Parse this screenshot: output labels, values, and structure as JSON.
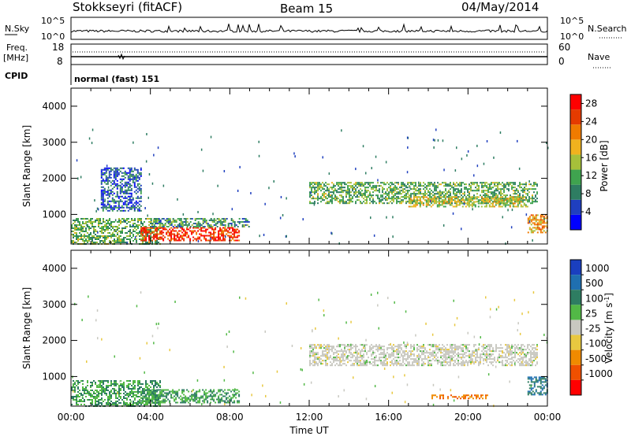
{
  "header": {
    "station": "Stokkseyri (fitACF)",
    "beam": "Beam 15",
    "date": "04/May/2014"
  },
  "top_panels": {
    "nsky_label": "N.Sky",
    "nsky_ticks": [
      "10^5",
      "10^0"
    ],
    "nsearch_label": "N.Search",
    "nsearch_ticks": [
      "10^5",
      "10^0"
    ],
    "freq_label": "Freq.",
    "freq_unit": "[MHz]",
    "freq_ticks": [
      "18",
      "8"
    ],
    "nave_label": "Nave",
    "nave_ticks": [
      "60",
      "0"
    ],
    "cpid_label": "CPID",
    "cpid_value": "normal (fast) 151"
  },
  "colors": {
    "power_scale": [
      "#0000ff",
      "#1f3fbf",
      "#2e7d62",
      "#3fa34f",
      "#a6c03a",
      "#f0b21e",
      "#f07b00",
      "#e53b00",
      "#ff0000"
    ],
    "velocity_scale": [
      "#1a3fbf",
      "#1f6fb0",
      "#2e7d62",
      "#52b846",
      "#c8c8c0",
      "#e8c840",
      "#f08a00",
      "#f05000",
      "#ff0000"
    ]
  },
  "chart_data": [
    {
      "type": "heatmap",
      "title": "Power",
      "xlabel": "",
      "ylabel": "Slant Range [km]",
      "xlim": [
        "00:00",
        "24:00"
      ],
      "ylim": [
        180,
        4500
      ],
      "y_ticks": [
        "1000",
        "2000",
        "3000",
        "4000"
      ],
      "colorbar_label": "Power [dB]",
      "colorbar_ticks": [
        "4",
        "8",
        "12",
        "16",
        "20",
        "24",
        "28"
      ],
      "colorbar_range": [
        0,
        30
      ],
      "regions": [
        {
          "t0": 0.0,
          "t1": 4.5,
          "r0": 200,
          "r1": 900,
          "value": 12
        },
        {
          "t0": 1.5,
          "t1": 3.5,
          "r0": 1100,
          "r1": 2300,
          "value": 6
        },
        {
          "t0": 3.5,
          "t1": 8.5,
          "r0": 300,
          "r1": 650,
          "value": 26
        },
        {
          "t0": 4.0,
          "t1": 9.0,
          "r0": 650,
          "r1": 900,
          "value": 10
        },
        {
          "t0": 12.0,
          "t1": 23.5,
          "r0": 1300,
          "r1": 1900,
          "value": 12
        },
        {
          "t0": 17.0,
          "t1": 23.0,
          "r0": 1200,
          "r1": 1500,
          "value": 16
        },
        {
          "t0": 23.0,
          "t1": 24.0,
          "r0": 500,
          "r1": 1000,
          "value": 20
        }
      ]
    },
    {
      "type": "heatmap",
      "title": "Velocity",
      "xlabel": "Time UT",
      "ylabel": "Slant Range [km]",
      "xlim": [
        "00:00",
        "24:00"
      ],
      "ylim": [
        180,
        4500
      ],
      "x_ticks": [
        "00:00",
        "04:00",
        "08:00",
        "12:00",
        "16:00",
        "20:00",
        "00:00"
      ],
      "y_ticks": [
        "1000",
        "2000",
        "3000",
        "4000"
      ],
      "colorbar_label": "Velocity [m s^-1]",
      "colorbar_ticks": [
        "1000",
        "500",
        "100",
        "25",
        "-25",
        "-100",
        "-500",
        "-1000"
      ],
      "regions": [
        {
          "t0": 0.0,
          "t1": 4.5,
          "r0": 200,
          "r1": 900,
          "value": 100
        },
        {
          "t0": 3.5,
          "t1": 8.5,
          "r0": 300,
          "r1": 650,
          "value": 100
        },
        {
          "t0": 12.0,
          "t1": 23.5,
          "r0": 1300,
          "r1": 1900,
          "value": 0
        },
        {
          "t0": 18.0,
          "t1": 21.0,
          "r0": 380,
          "r1": 500,
          "value": -500
        },
        {
          "t0": 23.0,
          "t1": 24.0,
          "r0": 500,
          "r1": 1000,
          "value": 500
        }
      ]
    }
  ]
}
